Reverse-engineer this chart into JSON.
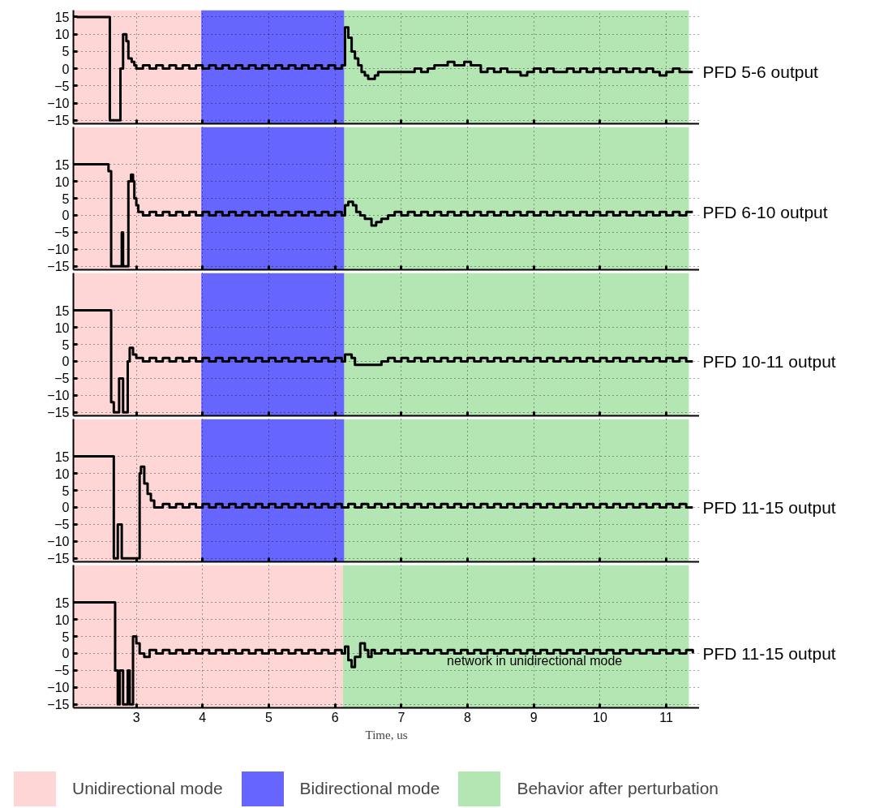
{
  "chart_data": [
    {
      "type": "step",
      "xlim": [
        2.05,
        11.5
      ],
      "xticks": [
        3,
        4,
        5,
        6,
        7,
        8,
        9,
        10,
        11
      ],
      "ylim": [
        -16,
        17
      ],
      "yticks": [
        -15,
        -10,
        -5,
        0,
        5,
        10,
        15
      ],
      "tick_labels": "y",
      "grid": true,
      "line_style": "solid",
      "legend": "bottom",
      "bands": [
        {
          "axis": "x",
          "from": 2.05,
          "to": 3.98,
          "color": "#ffd6d6",
          "label": "Unidirectional mode"
        },
        {
          "axis": "x",
          "from": 3.98,
          "to": 6.14,
          "color": "#6666ff",
          "label": "Bidirectional mode"
        },
        {
          "axis": "x",
          "from": 6.14,
          "to": 11.34,
          "color": "#b3e6b3",
          "label": "Behavior after perturbation"
        }
      ],
      "series": [
        {
          "name": "PFD 5-6 output",
          "color": "#000000",
          "x": [
            2.1,
            2.6,
            2.76,
            2.8,
            2.85,
            2.88,
            2.93,
            2.97,
            3.0,
            3.1,
            3.2,
            3.3,
            3.4,
            3.5,
            3.6,
            3.7,
            3.8,
            3.9,
            4.0,
            4.1,
            4.2,
            4.3,
            4.4,
            4.5,
            4.6,
            4.7,
            4.8,
            4.9,
            5.0,
            5.1,
            5.2,
            5.3,
            5.4,
            5.5,
            5.6,
            5.7,
            5.8,
            5.9,
            6.0,
            6.1,
            6.15,
            6.2,
            6.25,
            6.3,
            6.35,
            6.4,
            6.45,
            6.5,
            6.6,
            6.65,
            7.2,
            7.3,
            7.4,
            7.5,
            7.7,
            7.8,
            7.95,
            8.05,
            8.2,
            8.3,
            8.4,
            8.5,
            8.6,
            8.8,
            8.9,
            9.0,
            9.1,
            9.2,
            9.3,
            9.5,
            9.6,
            9.7,
            9.8,
            9.9,
            10.0,
            10.1,
            10.2,
            10.3,
            10.4,
            10.5,
            10.6,
            10.7,
            10.8,
            10.9,
            11.0,
            11.1,
            11.2,
            11.4
          ],
          "values": [
            15,
            -15,
            0,
            10,
            8,
            3,
            2,
            1,
            0,
            1,
            0,
            1,
            0,
            1,
            0,
            1,
            0,
            1,
            0,
            1,
            0,
            1,
            0,
            1,
            0,
            1,
            0,
            1,
            0,
            1,
            0,
            1,
            0,
            1,
            0,
            1,
            0,
            1,
            0,
            1,
            12,
            9,
            5,
            3,
            1,
            -1,
            -2,
            -3,
            -2,
            -1,
            0,
            -1,
            0,
            1,
            2,
            1,
            2,
            1,
            -1,
            0,
            -1,
            0,
            -1,
            -2,
            -1,
            0,
            -1,
            0,
            -1,
            0,
            -1,
            0,
            -1,
            0,
            -1,
            0,
            -1,
            0,
            -1,
            0,
            -1,
            0,
            -1,
            -2,
            -1,
            0,
            -1,
            -1
          ]
        }
      ]
    },
    {
      "type": "step",
      "xlim": [
        2.05,
        11.5
      ],
      "xticks": [
        3,
        4,
        5,
        6,
        7,
        8,
        9,
        10,
        11
      ],
      "ylim": [
        -16,
        26
      ],
      "yticks": [
        -15,
        -10,
        -5,
        0,
        5,
        10,
        15
      ],
      "tick_labels": "y",
      "grid": true,
      "line_style": "solid",
      "bands": [
        {
          "axis": "x",
          "from": 2.05,
          "to": 3.98,
          "color": "#ffd6d6"
        },
        {
          "axis": "x",
          "from": 3.98,
          "to": 6.14,
          "color": "#6666ff"
        },
        {
          "axis": "x",
          "from": 6.14,
          "to": 11.34,
          "color": "#b3e6b3"
        }
      ],
      "series": [
        {
          "name": "PFD 6-10 output",
          "color": "#000000",
          "x": [
            2.1,
            2.58,
            2.62,
            2.78,
            2.8,
            2.88,
            2.92,
            2.95,
            2.97,
            3.0,
            3.03,
            3.1,
            3.2,
            3.3,
            3.4,
            3.5,
            3.6,
            3.7,
            3.8,
            3.9,
            4.0,
            4.1,
            4.2,
            4.3,
            4.4,
            4.5,
            4.6,
            4.7,
            4.8,
            4.9,
            5.0,
            5.1,
            5.2,
            5.3,
            5.4,
            5.5,
            5.6,
            5.7,
            5.8,
            5.9,
            6.0,
            6.1,
            6.15,
            6.2,
            6.27,
            6.32,
            6.38,
            6.45,
            6.55,
            6.62,
            6.7,
            6.8,
            6.9,
            7.0,
            7.1,
            7.2,
            7.3,
            7.4,
            7.5,
            7.6,
            7.7,
            7.8,
            7.9,
            8.0,
            8.1,
            8.2,
            8.3,
            8.4,
            8.5,
            8.6,
            8.7,
            8.8,
            8.9,
            9.0,
            9.1,
            9.2,
            9.3,
            9.4,
            9.5,
            9.6,
            9.7,
            9.8,
            9.9,
            10.0,
            10.1,
            10.2,
            10.3,
            10.4,
            10.5,
            10.6,
            10.7,
            10.8,
            10.9,
            11.0,
            11.1,
            11.2,
            11.3,
            11.4
          ],
          "values": [
            15,
            13,
            -15,
            -5,
            -15,
            10,
            12,
            10,
            5,
            3,
            1,
            0,
            1,
            0,
            1,
            0,
            1,
            0,
            1,
            0,
            1,
            0,
            1,
            0,
            1,
            0,
            1,
            0,
            1,
            0,
            1,
            0,
            1,
            0,
            1,
            0,
            1,
            0,
            1,
            0,
            1,
            0,
            3,
            4,
            3,
            1,
            0,
            -1,
            -3,
            -2,
            -1,
            0,
            1,
            0,
            1,
            0,
            1,
            0,
            1,
            0,
            1,
            0,
            1,
            0,
            1,
            0,
            1,
            0,
            1,
            0,
            1,
            0,
            1,
            0,
            1,
            0,
            1,
            0,
            1,
            0,
            1,
            0,
            1,
            0,
            1,
            0,
            1,
            0,
            1,
            0,
            1,
            0,
            1,
            0,
            1,
            0,
            1,
            1
          ]
        }
      ]
    },
    {
      "type": "step",
      "xlim": [
        2.05,
        11.5
      ],
      "xticks": [
        3,
        4,
        5,
        6,
        7,
        8,
        9,
        10,
        11
      ],
      "ylim": [
        -16,
        26
      ],
      "yticks": [
        -15,
        -10,
        -5,
        0,
        5,
        10,
        15
      ],
      "tick_labels": "y",
      "grid": true,
      "line_style": "solid",
      "bands": [
        {
          "axis": "x",
          "from": 2.05,
          "to": 3.98,
          "color": "#ffd6d6"
        },
        {
          "axis": "x",
          "from": 3.98,
          "to": 6.14,
          "color": "#6666ff"
        },
        {
          "axis": "x",
          "from": 6.14,
          "to": 11.34,
          "color": "#b3e6b3"
        }
      ],
      "series": [
        {
          "name": "PFD 10-11 output",
          "color": "#000000",
          "x": [
            2.1,
            2.62,
            2.66,
            2.74,
            2.8,
            2.87,
            2.9,
            2.95,
            3.0,
            3.1,
            3.2,
            3.3,
            3.4,
            3.5,
            3.6,
            3.7,
            3.8,
            3.9,
            4.0,
            4.1,
            4.2,
            4.3,
            4.4,
            4.5,
            4.6,
            4.7,
            4.8,
            4.9,
            5.0,
            5.1,
            5.2,
            5.3,
            5.4,
            5.5,
            5.6,
            5.7,
            5.8,
            5.9,
            6.0,
            6.1,
            6.15,
            6.25,
            6.3,
            6.7,
            6.8,
            6.9,
            7.0,
            7.1,
            7.2,
            7.3,
            7.4,
            7.5,
            7.6,
            7.7,
            7.8,
            7.9,
            8.0,
            8.1,
            8.2,
            8.3,
            8.4,
            8.5,
            8.6,
            8.7,
            8.8,
            8.9,
            9.0,
            9.1,
            9.2,
            9.3,
            9.4,
            9.5,
            9.6,
            9.7,
            9.8,
            9.9,
            10.0,
            10.1,
            10.2,
            10.3,
            10.4,
            10.5,
            10.6,
            10.7,
            10.8,
            10.9,
            11.0,
            11.1,
            11.2,
            11.3,
            11.4
          ],
          "values": [
            15,
            -12,
            -15,
            -5,
            -15,
            0,
            4,
            2,
            1,
            0,
            1,
            0,
            1,
            0,
            1,
            0,
            1,
            0,
            1,
            0,
            1,
            0,
            1,
            0,
            1,
            0,
            1,
            0,
            1,
            0,
            1,
            0,
            1,
            0,
            1,
            0,
            1,
            0,
            1,
            0,
            2,
            1,
            -1,
            0,
            1,
            0,
            1,
            0,
            1,
            0,
            1,
            0,
            1,
            0,
            1,
            0,
            1,
            0,
            1,
            0,
            1,
            0,
            1,
            0,
            1,
            0,
            1,
            0,
            1,
            0,
            1,
            0,
            1,
            0,
            1,
            0,
            1,
            0,
            1,
            0,
            1,
            0,
            1,
            0,
            1,
            0,
            1,
            0,
            1,
            0,
            0
          ]
        }
      ]
    },
    {
      "type": "step",
      "xlim": [
        2.05,
        11.5
      ],
      "xticks": [
        3,
        4,
        5,
        6,
        7,
        8,
        9,
        10,
        11
      ],
      "ylim": [
        -16,
        26
      ],
      "yticks": [
        -15,
        -10,
        -5,
        0,
        5,
        10,
        15
      ],
      "tick_labels": "y",
      "grid": true,
      "line_style": "solid",
      "bands": [
        {
          "axis": "x",
          "from": 2.05,
          "to": 3.98,
          "color": "#ffd6d6"
        },
        {
          "axis": "x",
          "from": 3.98,
          "to": 6.14,
          "color": "#6666ff"
        },
        {
          "axis": "x",
          "from": 6.14,
          "to": 11.34,
          "color": "#b3e6b3"
        }
      ],
      "series": [
        {
          "name": "PFD 11-15 output",
          "color": "#000000",
          "x": [
            2.1,
            2.66,
            2.72,
            2.78,
            3.05,
            3.07,
            3.12,
            3.17,
            3.22,
            3.27,
            3.3,
            3.4,
            3.5,
            3.6,
            3.7,
            3.8,
            3.9,
            4.0,
            4.1,
            4.2,
            4.3,
            4.4,
            4.5,
            4.6,
            4.7,
            4.8,
            4.9,
            5.0,
            5.1,
            5.2,
            5.3,
            5.4,
            5.5,
            5.6,
            5.7,
            5.8,
            5.9,
            6.0,
            6.1,
            6.2,
            6.3,
            6.4,
            6.5,
            6.6,
            6.7,
            6.8,
            6.9,
            7.0,
            7.1,
            7.2,
            7.3,
            7.4,
            7.5,
            7.6,
            7.7,
            7.8,
            7.9,
            8.0,
            8.1,
            8.2,
            8.3,
            8.4,
            8.5,
            8.6,
            8.7,
            8.8,
            8.9,
            9.0,
            9.1,
            9.2,
            9.3,
            9.4,
            9.5,
            9.6,
            9.7,
            9.8,
            9.9,
            10.0,
            10.1,
            10.2,
            10.3,
            10.4,
            10.5,
            10.6,
            10.7,
            10.8,
            10.9,
            11.0,
            11.1,
            11.2,
            11.3,
            11.4
          ],
          "values": [
            15,
            -15,
            -5,
            -15,
            10,
            12,
            7,
            4,
            2,
            0,
            0,
            1,
            0,
            1,
            0,
            1,
            0,
            1,
            0,
            1,
            0,
            1,
            0,
            1,
            0,
            1,
            0,
            1,
            0,
            1,
            0,
            1,
            0,
            1,
            0,
            1,
            0,
            1,
            0,
            1,
            0,
            1,
            0,
            1,
            0,
            1,
            0,
            1,
            0,
            1,
            0,
            1,
            0,
            1,
            0,
            1,
            0,
            1,
            0,
            1,
            0,
            1,
            0,
            1,
            0,
            1,
            0,
            1,
            0,
            1,
            0,
            1,
            0,
            1,
            0,
            1,
            0,
            1,
            0,
            1,
            0,
            1,
            0,
            1,
            0,
            1,
            0,
            1,
            0,
            1,
            0,
            0
          ]
        }
      ]
    },
    {
      "type": "step",
      "xlim": [
        2.05,
        11.5
      ],
      "xticks": [
        3,
        4,
        5,
        6,
        7,
        8,
        9,
        10,
        11
      ],
      "ylim": [
        -16,
        26
      ],
      "yticks": [
        -15,
        -10,
        -5,
        0,
        5,
        10,
        15
      ],
      "grid": true,
      "line_style": "solid",
      "xlabel": "Time, us",
      "bands": [
        {
          "axis": "x",
          "from": 2.05,
          "to": 6.12,
          "color": "#ffd6d6"
        },
        {
          "axis": "x",
          "from": 6.12,
          "to": 11.34,
          "color": "#b3e6b3"
        }
      ],
      "annotations": [
        "network in unidirectional mode"
      ],
      "series": [
        {
          "name": "PFD 11-15 output",
          "color": "#000000",
          "x": [
            2.1,
            2.68,
            2.72,
            2.75,
            2.8,
            2.87,
            2.9,
            2.95,
            3.0,
            3.05,
            3.12,
            3.2,
            3.3,
            3.4,
            3.5,
            3.6,
            3.7,
            3.8,
            3.9,
            4.0,
            4.1,
            4.2,
            4.3,
            4.4,
            4.5,
            4.6,
            4.7,
            4.8,
            4.9,
            5.0,
            5.1,
            5.2,
            5.3,
            5.4,
            5.5,
            5.6,
            5.7,
            5.8,
            5.9,
            6.0,
            6.1,
            6.15,
            6.2,
            6.25,
            6.3,
            6.38,
            6.45,
            6.5,
            6.55,
            6.6,
            6.7,
            6.8,
            6.9,
            7.0,
            7.1,
            7.2,
            7.3,
            7.4,
            7.5,
            7.6,
            7.7,
            7.8,
            7.9,
            8.0,
            8.1,
            8.2,
            8.3,
            8.4,
            8.5,
            8.6,
            8.7,
            8.8,
            8.9,
            9.0,
            9.1,
            9.2,
            9.3,
            9.4,
            9.5,
            9.6,
            9.7,
            9.8,
            9.9,
            10.0,
            10.1,
            10.2,
            10.3,
            10.4,
            10.5,
            10.6,
            10.7,
            10.8,
            10.9,
            11.0,
            11.1,
            11.2,
            11.3,
            11.4
          ],
          "values": [
            15,
            -5,
            -15,
            -5,
            -15,
            -5,
            -15,
            5,
            3,
            0,
            -1,
            1,
            0,
            1,
            0,
            1,
            0,
            1,
            0,
            1,
            0,
            1,
            0,
            1,
            0,
            1,
            0,
            1,
            0,
            1,
            0,
            1,
            0,
            1,
            0,
            1,
            0,
            1,
            0,
            1,
            0,
            2,
            -2,
            -4,
            -1,
            3,
            1,
            -1,
            1,
            0,
            1,
            0,
            1,
            0,
            1,
            0,
            1,
            0,
            1,
            0,
            1,
            0,
            1,
            0,
            1,
            0,
            1,
            0,
            1,
            0,
            1,
            0,
            1,
            0,
            1,
            0,
            1,
            0,
            1,
            0,
            1,
            0,
            1,
            0,
            1,
            0,
            1,
            0,
            1,
            0,
            1,
            0,
            1,
            0,
            1,
            0,
            1,
            0
          ]
        }
      ]
    }
  ]
}
